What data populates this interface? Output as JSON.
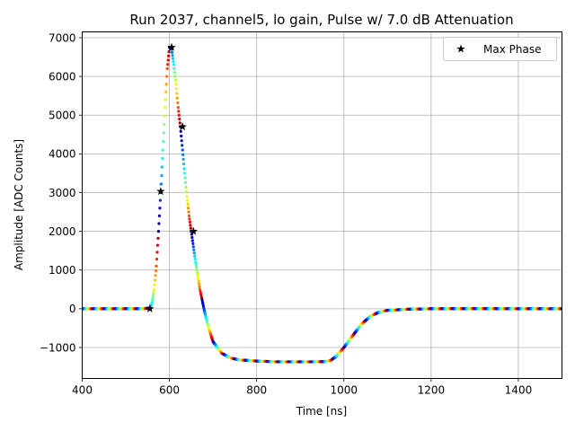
{
  "chart_data": {
    "type": "scatter",
    "title": "Run 2037, channel5, lo gain, Pulse w/ 7.0 dB Attenuation",
    "xlabel": "Time [ns]",
    "ylabel": "Amplitude [ADC Counts]",
    "xlim": [
      400,
      1500
    ],
    "ylim": [
      -1800,
      7150
    ],
    "xticks": [
      400,
      600,
      800,
      1000,
      1200,
      1400
    ],
    "xtick_labels": [
      "400",
      "600",
      "800",
      "1000",
      "1200",
      "1400"
    ],
    "yticks": [
      -1000,
      0,
      1000,
      2000,
      3000,
      4000,
      5000,
      6000,
      7000
    ],
    "ytick_labels": [
      "−1000",
      "0",
      "1000",
      "2000",
      "3000",
      "4000",
      "5000",
      "6000",
      "7000"
    ],
    "grid": true,
    "legend": {
      "position": "top-right",
      "entries": [
        "Max Phase"
      ]
    },
    "series": [
      {
        "kind": "pulse-waveform",
        "color_scheme": "jet colormap cycling by sample phase",
        "x": [
          400,
          540,
          555,
          560,
          565,
          570,
          575,
          580,
          585,
          590,
          595,
          600,
          605,
          610,
          615,
          620,
          625,
          630,
          635,
          640,
          645,
          650,
          655,
          660,
          670,
          680,
          690,
          700,
          720,
          740,
          760,
          800,
          850,
          900,
          940,
          960,
          970,
          980,
          990,
          1000,
          1010,
          1020,
          1040,
          1060,
          1080,
          1100,
          1150,
          1200,
          1300,
          1400,
          1500
        ],
        "y": [
          0,
          0,
          20,
          150,
          500,
          1100,
          2000,
          3000,
          4100,
          5200,
          6200,
          6750,
          6700,
          6300,
          5800,
          5200,
          4700,
          4100,
          3500,
          2900,
          2400,
          2000,
          1600,
          1200,
          500,
          -50,
          -500,
          -850,
          -1150,
          -1270,
          -1320,
          -1350,
          -1370,
          -1370,
          -1370,
          -1360,
          -1330,
          -1250,
          -1130,
          -1000,
          -850,
          -700,
          -400,
          -200,
          -90,
          -40,
          -10,
          0,
          5,
          0,
          0
        ]
      },
      {
        "name": "Max Phase",
        "marker": "star",
        "color": "#000000",
        "x": [
          555,
          580,
          605,
          630,
          655
        ],
        "y": [
          0,
          3030,
          6750,
          4700,
          2000
        ]
      }
    ]
  }
}
